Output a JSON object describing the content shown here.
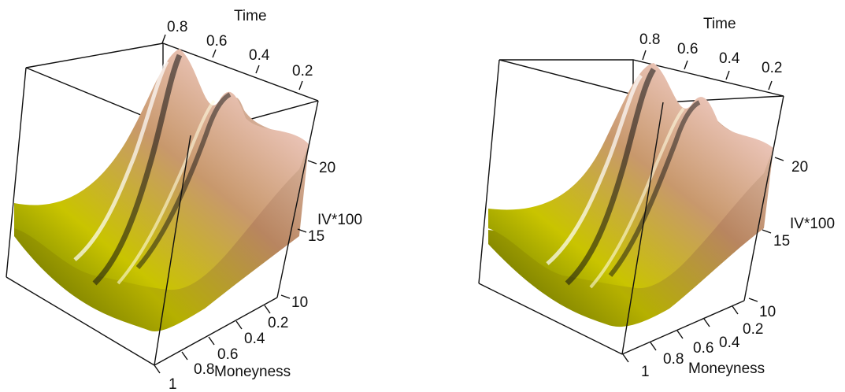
{
  "chart_data": [
    {
      "type": "surface",
      "panel": "left",
      "axes": {
        "time": {
          "label": "Time",
          "ticks": [
            "0.8",
            "0.6",
            "0.4",
            "0.2"
          ]
        },
        "iv": {
          "label": "IV*100",
          "ticks": [
            "20",
            "15",
            "10"
          ]
        },
        "moneyness": {
          "label": "Moneyness",
          "ticks": [
            "0.2",
            "0.4",
            "0.6",
            "0.8",
            "1"
          ]
        }
      },
      "zlim": [
        10,
        22
      ],
      "colors": {
        "low": "#b8b800",
        "mid": "#d9a57a",
        "high": "#f6e2dc"
      }
    },
    {
      "type": "surface",
      "panel": "right",
      "axes": {
        "time": {
          "label": "Time",
          "ticks": [
            "0.8",
            "0.6",
            "0.4",
            "0.2"
          ]
        },
        "iv": {
          "label": "IV*100",
          "ticks": [
            "20",
            "15",
            "10"
          ]
        },
        "moneyness": {
          "label": "Moneyness",
          "ticks": [
            "0.2",
            "0.4",
            "0.6",
            "0.8",
            "1"
          ]
        }
      },
      "zlim": [
        10,
        22
      ],
      "colors": {
        "low": "#b8b800",
        "mid": "#d9a57a",
        "high": "#f6e2dc"
      }
    }
  ]
}
